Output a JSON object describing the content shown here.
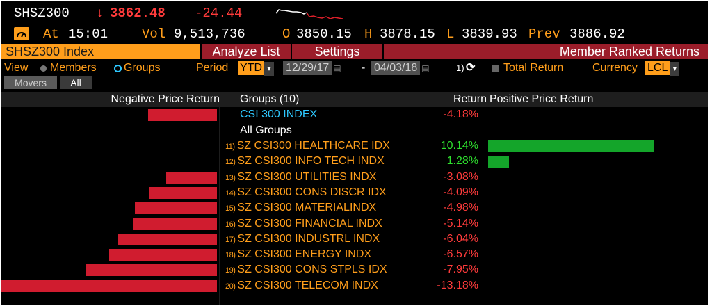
{
  "header": {
    "ticker": "SHSZ300",
    "price_arrow": "↓",
    "price": "3862.48",
    "change": "-24.44",
    "at_label": "At",
    "time": "15:01",
    "vol_label": "Vol",
    "volume": "9,513,736",
    "open_label": "O",
    "open": "3850.15",
    "high_label": "H",
    "high": "3878.15",
    "low_label": "L",
    "low": "3839.93",
    "prev_label": "Prev",
    "prev": "3886.92"
  },
  "menu": {
    "security": "SHSZ300 Index",
    "analyze": "Analyze List",
    "settings": "Settings",
    "title": "Member Ranked Returns"
  },
  "controls": {
    "view_label": "View",
    "members_label": "Members",
    "groups_label": "Groups",
    "period_label": "Period",
    "period_value": "YTD",
    "start_date": "12/29/17",
    "dash": "-",
    "end_date": "04/03/18",
    "refresh_label": "1)",
    "total_return_label": "Total Return",
    "currency_label": "Currency",
    "currency_value": "LCL"
  },
  "tabs": {
    "movers": "Movers",
    "all": "All"
  },
  "table": {
    "neg_header": "Negative Price Return",
    "groups_header": "Groups (10)",
    "return_header": "Return",
    "pos_header": "Positive Price Return",
    "index_name": "CSI 300 INDEX",
    "index_return": "-4.18%",
    "all_groups": "All Groups",
    "rows": [
      {
        "num": "11)",
        "name": "SZ CSI300 HEALTHCARE IDX",
        "ret": "10.14%"
      },
      {
        "num": "12)",
        "name": "SZ CSI300 INFO TECH INDX",
        "ret": "1.28%"
      },
      {
        "num": "13)",
        "name": "SZ CSI300 UTILITIES INDX",
        "ret": "-3.08%"
      },
      {
        "num": "14)",
        "name": "SZ CSI300 CONS DISCR IDX",
        "ret": "-4.09%"
      },
      {
        "num": "15)",
        "name": "SZ CSI300 MATERIALINDX",
        "ret": "-4.98%"
      },
      {
        "num": "16)",
        "name": "SZ CSI300 FINANCIAL INDX",
        "ret": "-5.14%"
      },
      {
        "num": "17)",
        "name": "SZ CSI300 INDUSTRL INDX",
        "ret": "-6.04%"
      },
      {
        "num": "18)",
        "name": "SZ CSI300 ENERGY INDX",
        "ret": "-6.57%"
      },
      {
        "num": "19)",
        "name": "SZ CSI300 CONS STPLS IDX",
        "ret": "-7.95%"
      },
      {
        "num": "20)",
        "name": "SZ CSI300 TELECOM INDX",
        "ret": "-13.18%"
      }
    ]
  },
  "chart_data": {
    "type": "bar",
    "categories": [
      "CSI 300 INDEX",
      "SZ CSI300 HEALTHCARE IDX",
      "SZ CSI300 INFO TECH INDX",
      "SZ CSI300 UTILITIES INDX",
      "SZ CSI300 CONS DISCR IDX",
      "SZ CSI300 MATERIALINDX",
      "SZ CSI300 FINANCIAL INDX",
      "SZ CSI300 INDUSTRL INDX",
      "SZ CSI300 ENERGY INDX",
      "SZ CSI300 CONS STPLS IDX",
      "SZ CSI300 TELECOM INDX"
    ],
    "values": [
      -4.18,
      10.14,
      1.28,
      -3.08,
      -4.09,
      -4.98,
      -5.14,
      -6.04,
      -6.57,
      -7.95,
      -13.18
    ]
  },
  "colors": {
    "accent_orange": "#ff9e1b",
    "negative_red": "#ff3b3b",
    "positive_green": "#2ee02e",
    "bar_red": "#d01c2f",
    "bar_green": "#14a52a",
    "menu_red": "#9b1d2a",
    "index_cyan": "#2ec8ff"
  },
  "icons": {
    "alert": "gauge-icon",
    "refresh": "refresh-icon",
    "sparkline": "sparkline-icon"
  }
}
